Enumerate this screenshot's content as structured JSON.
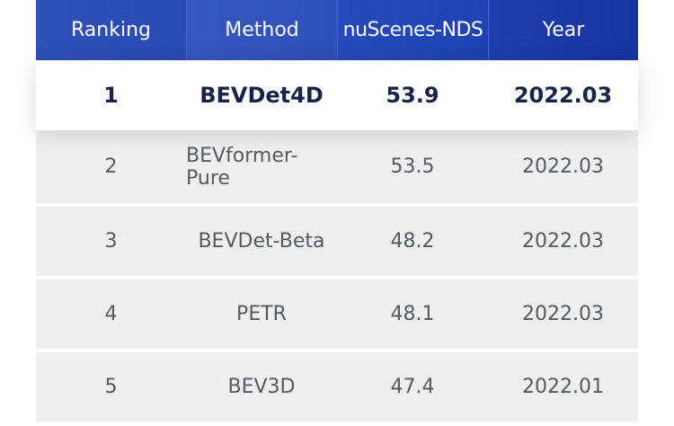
{
  "table": {
    "headers": [
      "Ranking",
      "Method",
      "nuScenes-NDS",
      "Year"
    ],
    "rows": [
      {
        "ranking": "1",
        "method": "BEVDet4D",
        "nds": "53.9",
        "year": "2022.03"
      },
      {
        "ranking": "2",
        "method": "BEVformer-Pure",
        "nds": "53.5",
        "year": "2022.03"
      },
      {
        "ranking": "3",
        "method": "BEVDet-Beta",
        "nds": "48.2",
        "year": "2022.03"
      },
      {
        "ranking": "4",
        "method": "PETR",
        "nds": "48.1",
        "year": "2022.03"
      },
      {
        "ranking": "5",
        "method": "BEV3D",
        "nds": "47.4",
        "year": "2022.01"
      }
    ]
  },
  "colors": {
    "header_bg": "#2a4ab4",
    "header_text": "#ffffff",
    "top_row_text": "#152447",
    "row_bg": "#efefef",
    "row_text": "#555b63"
  }
}
